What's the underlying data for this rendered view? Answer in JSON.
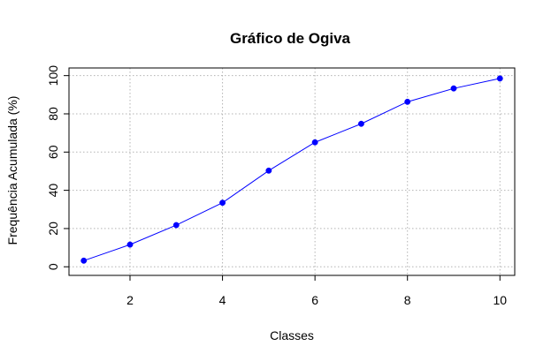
{
  "chart_data": {
    "type": "line",
    "title": "Gráfico de Ogiva",
    "xlabel": "Classes",
    "ylabel": "Frequência Acumulada (%)",
    "x": [
      1,
      2,
      3,
      4,
      5,
      6,
      7,
      8,
      9,
      10
    ],
    "series": [
      {
        "values": [
          3.2,
          11.6,
          21.8,
          33.5,
          50.3,
          65.1,
          74.8,
          86.3,
          93.3,
          98.5
        ],
        "color": "#0000ff"
      }
    ],
    "xlim": [
      0.68,
      10.32
    ],
    "ylim": [
      -4.5,
      104
    ],
    "xticks": [
      2,
      4,
      6,
      8,
      10
    ],
    "yticks": [
      0,
      20,
      40,
      60,
      80,
      100
    ],
    "grid": true,
    "grid_color": "#b3b3b3",
    "marker": "filled-circle",
    "legend": "none"
  }
}
